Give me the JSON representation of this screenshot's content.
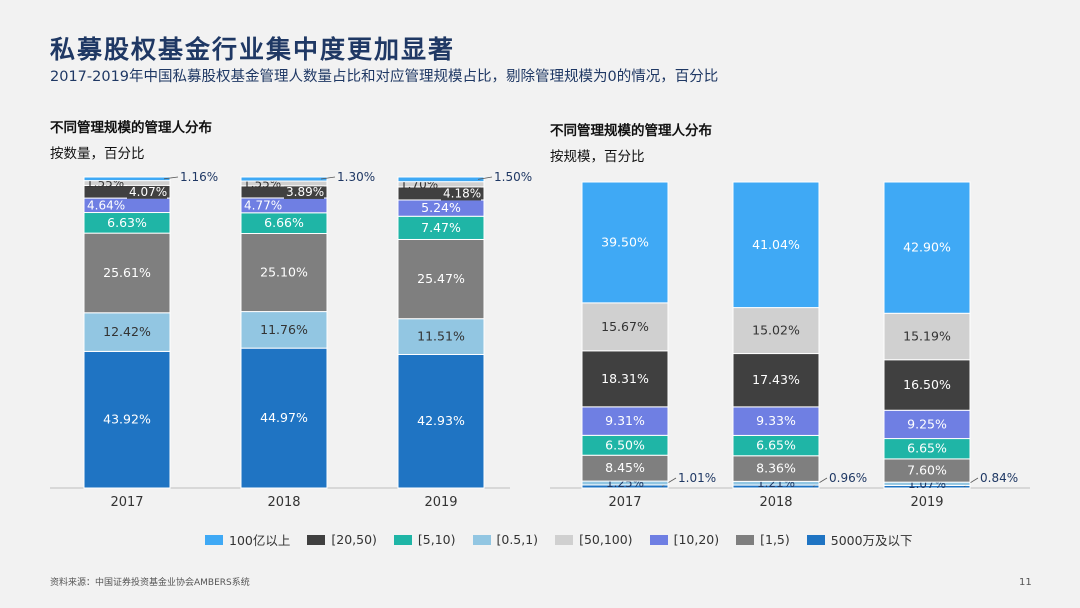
{
  "header": {
    "title": "私募股权基金行业集中度更加显著",
    "subtitle": "2017-2019年中国私募股权基金管理人数量占比和对应管理规模占比，剔除管理规模为0的情况，百分比"
  },
  "colors": {
    "100亿以上": "#3fa9f5",
    "[20,50)": "#404040",
    "[5,10)": "#1fb5a6",
    "[0.5,1)": "#92c6e2",
    "[50,100)": "#d0d0d0",
    "[10,20)": "#6f7fe3",
    "[1,5)": "#7f7f7f",
    "5000万及以下": "#1f74c3"
  },
  "legend": [
    "100亿以上",
    "[20,50)",
    "[5,10)",
    "[0.5,1)",
    "[50,100)",
    "[10,20)",
    "[1,5)",
    "5000万及以下"
  ],
  "chart_data": [
    {
      "type": "bar",
      "stacked": true,
      "title": "不同管理规模的管理人分布",
      "unit": "按数量，百分比",
      "categories": [
        "2017",
        "2018",
        "2019"
      ],
      "series": [
        {
          "name": "5000万及以下",
          "values": [
            43.92,
            44.97,
            42.93
          ],
          "labels": [
            "43.92%",
            "44.97%",
            "42.93%"
          ]
        },
        {
          "name": "[0.5,1)",
          "values": [
            12.42,
            11.76,
            11.51
          ],
          "labels": [
            "12.42%",
            "11.76%",
            "11.51%"
          ]
        },
        {
          "name": "[1,5)",
          "values": [
            25.61,
            25.1,
            25.47
          ],
          "labels": [
            "25.61%",
            "25.10%",
            "25.47%"
          ]
        },
        {
          "name": "[5,10)",
          "values": [
            6.63,
            6.66,
            7.47
          ],
          "labels": [
            "6.63%",
            "6.66%",
            "7.47%"
          ]
        },
        {
          "name": "[10,20)",
          "values": [
            4.64,
            4.77,
            5.24
          ],
          "labels": [
            "4.64%",
            "4.77%",
            "5.24%"
          ]
        },
        {
          "name": "[20,50)",
          "values": [
            4.07,
            3.89,
            4.18
          ],
          "labels": [
            "4.07%",
            "3.89%",
            "4.18%"
          ]
        },
        {
          "name": "[50,100)",
          "values": [
            1.55,
            1.55,
            1.7
          ],
          "labels": [
            "1.55%",
            "1.55%",
            "1.70%"
          ]
        },
        {
          "name": "100亿以上",
          "values": [
            1.16,
            1.3,
            1.5
          ],
          "labels": [
            "1.16%",
            "1.30%",
            "1.50%"
          ]
        }
      ]
    },
    {
      "type": "bar",
      "stacked": true,
      "title": "不同管理规模的管理人分布",
      "unit": "按规模，百分比",
      "categories": [
        "2017",
        "2018",
        "2019"
      ],
      "series": [
        {
          "name": "5000万及以下",
          "values": [
            1.01,
            0.96,
            0.84
          ],
          "labels": [
            "1.01%",
            "0.96%",
            "0.84%"
          ]
        },
        {
          "name": "[0.5,1)",
          "values": [
            1.25,
            1.21,
            1.07
          ],
          "labels": [
            "1.25%",
            "1.21%",
            "1.07%"
          ]
        },
        {
          "name": "[1,5)",
          "values": [
            8.45,
            8.36,
            7.6
          ],
          "labels": [
            "8.45%",
            "8.36%",
            "7.60%"
          ]
        },
        {
          "name": "[5,10)",
          "values": [
            6.5,
            6.65,
            6.65
          ],
          "labels": [
            "6.50%",
            "6.65%",
            "6.65%"
          ]
        },
        {
          "name": "[10,20)",
          "values": [
            9.31,
            9.33,
            9.25
          ],
          "labels": [
            "9.31%",
            "9.33%",
            "9.25%"
          ]
        },
        {
          "name": "[20,50)",
          "values": [
            18.31,
            17.43,
            16.5
          ],
          "labels": [
            "18.31%",
            "17.43%",
            "16.50%"
          ]
        },
        {
          "name": "[50,100)",
          "values": [
            15.67,
            15.02,
            15.19
          ],
          "labels": [
            "15.67%",
            "15.02%",
            "15.19%"
          ]
        },
        {
          "name": "100亿以上",
          "values": [
            39.5,
            41.04,
            42.9
          ],
          "labels": [
            "39.50%",
            "41.04%",
            "42.90%"
          ]
        }
      ]
    }
  ],
  "footer": {
    "source": "资料来源：中国证券投资基金业协会AMBERS系统",
    "page": "11"
  }
}
